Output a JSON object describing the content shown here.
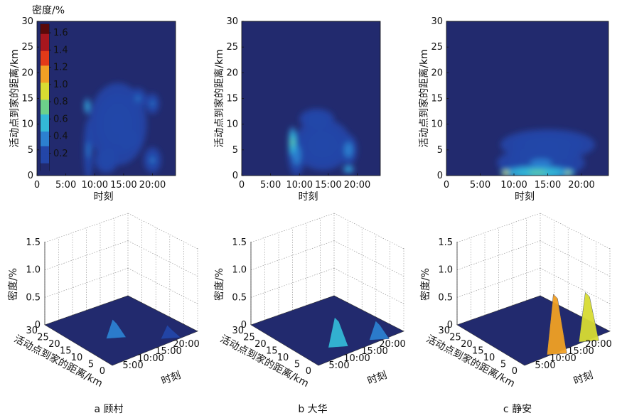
{
  "colors": {
    "background": "#222a6e",
    "cmap": [
      "#222a6e",
      "#2346a8",
      "#2c80d0",
      "#33b8d6",
      "#6cd08a",
      "#d8dc32",
      "#f0a024",
      "#e33a18",
      "#a8161e",
      "#5a0a0a"
    ]
  },
  "colorbar": {
    "title": "密度/%",
    "ticks": [
      "1.6",
      "1.4",
      "1.2",
      "1.0",
      "0.8",
      "0.6",
      "0.4",
      "0.2"
    ],
    "max": 1.7
  },
  "heatmap_axes": {
    "xlabel": "时刻",
    "ylabel": "活动点到家的距离/km",
    "xticks": [
      "0",
      "5:00",
      "10:00",
      "15:00",
      "20:00"
    ],
    "yticks": [
      "0",
      "5",
      "10",
      "15",
      "20",
      "25",
      "30"
    ]
  },
  "surface_axes": {
    "zlabel": "密度/%",
    "xlabel": "时刻",
    "ylabel": "活动点到家的距离/km",
    "zticks": [
      "0",
      "0.5",
      "1.0",
      "1.5"
    ],
    "xticks": [
      "5:00",
      "10:00",
      "15:00",
      "20:00"
    ],
    "yticks": [
      "30",
      "25",
      "20",
      "15",
      "10",
      "5",
      "0"
    ]
  },
  "captions": [
    "a 顾村",
    "b 大华",
    "c 静安"
  ],
  "chart_data": [
    {
      "type": "heatmap",
      "panel": "a 顾村",
      "xlabel": "时刻",
      "ylabel": "活动点到家的距离/km",
      "xlim": [
        0,
        24
      ],
      "ylim": [
        0,
        30
      ],
      "blobs": [
        {
          "x": 8.7,
          "y": 13.5,
          "rx": 0.5,
          "ry": 1.6,
          "v": 0.6
        },
        {
          "x": 8.9,
          "y": 5,
          "rx": 0.8,
          "ry": 6,
          "v": 0.3
        },
        {
          "x": 14,
          "y": 10,
          "rx": 5,
          "ry": 8,
          "v": 0.22
        },
        {
          "x": 17.5,
          "y": 15,
          "rx": 1.5,
          "ry": 2,
          "v": 0.3
        },
        {
          "x": 20,
          "y": 14,
          "rx": 1.2,
          "ry": 2,
          "v": 0.3
        },
        {
          "x": 20,
          "y": 3,
          "rx": 1.5,
          "ry": 2.5,
          "v": 0.32
        },
        {
          "x": 12,
          "y": 3,
          "rx": 2,
          "ry": 2.5,
          "v": 0.26
        },
        {
          "x": 16,
          "y": 7,
          "rx": 2,
          "ry": 2,
          "v": 0.26
        }
      ]
    },
    {
      "type": "heatmap",
      "panel": "b 大华",
      "xlabel": "时刻",
      "ylabel": "活动点到家的距离/km",
      "xlim": [
        0,
        24
      ],
      "ylim": [
        0,
        30
      ],
      "blobs": [
        {
          "x": 8.8,
          "y": 6.5,
          "rx": 0.7,
          "ry": 3,
          "v": 0.75
        },
        {
          "x": 9.5,
          "y": 4,
          "rx": 1.5,
          "ry": 4,
          "v": 0.35
        },
        {
          "x": 14,
          "y": 6,
          "rx": 5,
          "ry": 5,
          "v": 0.22
        },
        {
          "x": 18.5,
          "y": 5,
          "rx": 1.5,
          "ry": 3,
          "v": 0.4
        },
        {
          "x": 18.5,
          "y": 1.2,
          "rx": 1,
          "ry": 0.7,
          "v": 0.6
        },
        {
          "x": 13,
          "y": 11,
          "rx": 3,
          "ry": 2,
          "v": 0.25
        }
      ]
    },
    {
      "type": "heatmap",
      "panel": "c 静安",
      "xlabel": "时刻",
      "ylabel": "活动点到家的距离/km",
      "xlim": [
        0,
        24
      ],
      "ylim": [
        0,
        30
      ],
      "blobs": [
        {
          "x": 8.8,
          "y": 0.5,
          "rx": 0.7,
          "ry": 0.7,
          "v": 1.05
        },
        {
          "x": 18,
          "y": 0.5,
          "rx": 1,
          "ry": 0.7,
          "v": 0.85
        },
        {
          "x": 13.5,
          "y": 0.6,
          "rx": 5.5,
          "ry": 1.3,
          "v": 0.7
        },
        {
          "x": 14,
          "y": 2.5,
          "rx": 6.5,
          "ry": 3,
          "v": 0.32
        },
        {
          "x": 15,
          "y": 6,
          "rx": 7,
          "ry": 3,
          "v": 0.22
        }
      ]
    },
    {
      "type": "surface",
      "panel": "a 顾村",
      "zlim": [
        0,
        1.5
      ],
      "peaks": [
        {
          "time": 9,
          "distance": 13,
          "density": 0.3
        },
        {
          "time": 18,
          "distance": 3,
          "density": 0.2
        }
      ]
    },
    {
      "type": "surface",
      "panel": "b 大华",
      "zlim": [
        0,
        1.5
      ],
      "peaks": [
        {
          "time": 9,
          "distance": 6,
          "density": 0.5
        },
        {
          "time": 18,
          "distance": 2,
          "density": 0.3
        }
      ]
    },
    {
      "type": "surface",
      "panel": "c 静安",
      "zlim": [
        0,
        1.5
      ],
      "peaks": [
        {
          "time": 9,
          "distance": 0.5,
          "density": 1.05
        },
        {
          "time": 18,
          "distance": 0.5,
          "density": 0.85
        }
      ]
    }
  ]
}
